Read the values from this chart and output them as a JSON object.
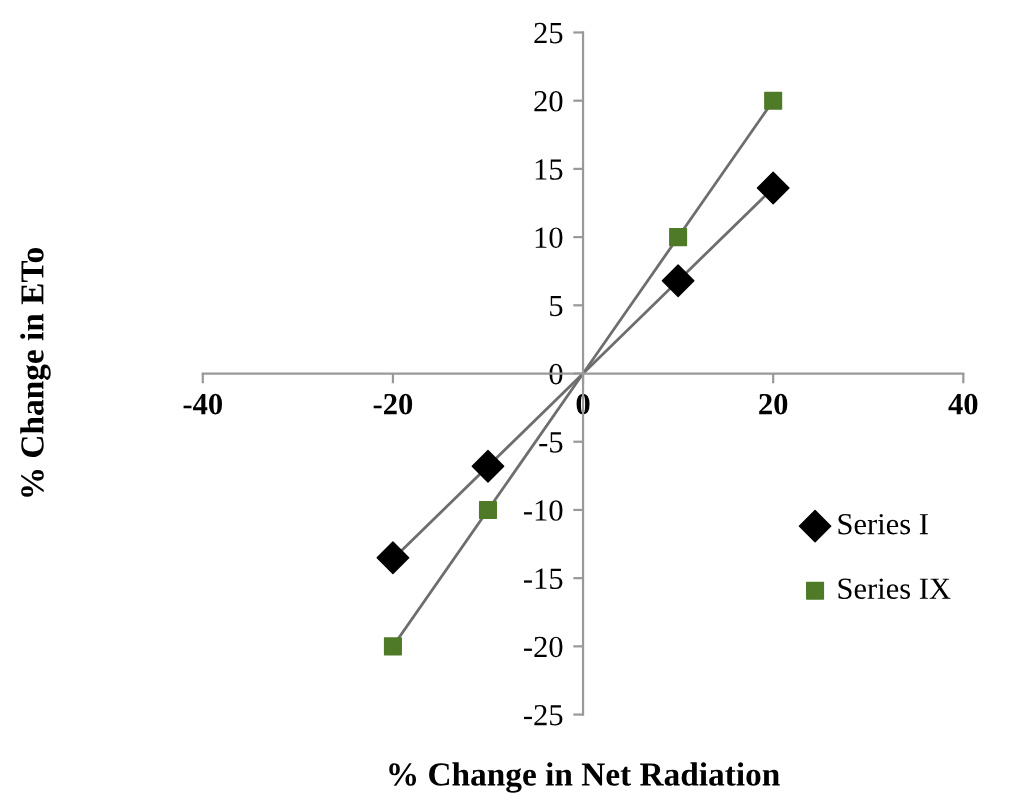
{
  "chart_data": {
    "type": "scatter",
    "xlabel": "% Change in Net Radiation",
    "ylabel": "% Change in ETo",
    "xlim": [
      -40,
      40
    ],
    "xticks": [
      -40,
      -20,
      0,
      20,
      40
    ],
    "ylim": [
      -25,
      25
    ],
    "yticks": [
      -25,
      -20,
      -15,
      -10,
      -5,
      0,
      5,
      10,
      15,
      20,
      25
    ],
    "grid": false,
    "legend": "right",
    "series": [
      {
        "name": "Series I",
        "color": "#000000",
        "marker": "diamond",
        "x": [
          -20,
          -10,
          10,
          20
        ],
        "values": [
          -13.5,
          -6.8,
          6.8,
          13.6
        ]
      },
      {
        "name": "Series IX",
        "color": "#4f7a28",
        "marker": "square",
        "x": [
          -20,
          -10,
          10,
          20
        ],
        "values": [
          -20,
          -10,
          10,
          20
        ]
      },
      {
        "type": "line",
        "color": "#6e6e6e",
        "x": [
          -20,
          0,
          20
        ],
        "values": [
          -13.6,
          0,
          13.6
        ]
      },
      {
        "type": "line",
        "color": "#6e6e6e",
        "x": [
          -20,
          0,
          20
        ],
        "values": [
          -20,
          0,
          20
        ]
      }
    ]
  }
}
